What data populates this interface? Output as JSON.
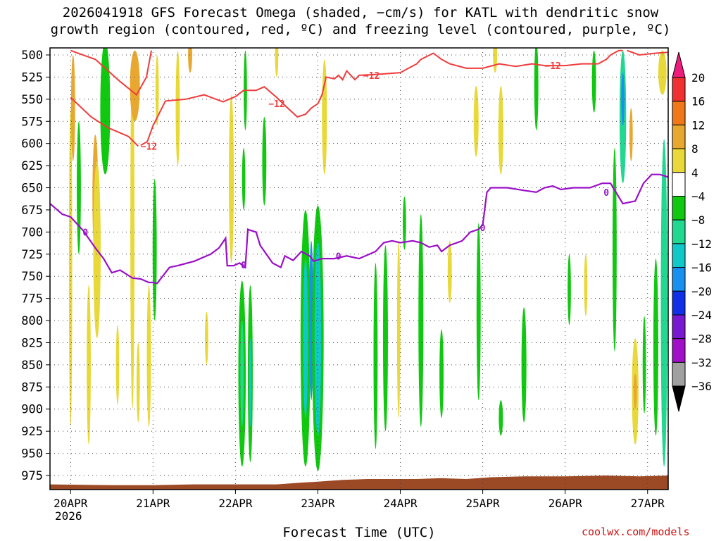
{
  "title_line1": "2026041918 GFS Forecast Omega (shaded, −cm/s) for KATL with dendritic snow",
  "title_line2": "growth region (contoured, red, ºC) and freezing level (contoured, purple, ºC)",
  "xlabel": "Forecast Time (UTC)",
  "credit": "coolwx.com/models",
  "chart_data": {
    "type": "heatmap",
    "title": "2026041918 GFS Forecast Omega (shaded, −cm/s) for KATL with dendritic snow growth region (contoured, red, ºC) and freezing level (contoured, purple, ºC)",
    "xlabel": "Forecast Time (UTC)",
    "ylabel": "",
    "y_inverted": true,
    "y_unit": "hPa",
    "ylim": [
      987,
      495
    ],
    "xlim": [
      -0.25,
      7.25
    ],
    "x_ticks": [
      {
        "x": 0,
        "label": "20APR",
        "sub": "2026"
      },
      {
        "x": 1,
        "label": "21APR"
      },
      {
        "x": 2,
        "label": "22APR"
      },
      {
        "x": 3,
        "label": "23APR"
      },
      {
        "x": 4,
        "label": "24APR"
      },
      {
        "x": 5,
        "label": "25APR"
      },
      {
        "x": 6,
        "label": "26APR"
      },
      {
        "x": 7,
        "label": "27APR"
      }
    ],
    "y_ticks": [
      500,
      525,
      550,
      575,
      600,
      625,
      650,
      675,
      700,
      725,
      750,
      775,
      800,
      825,
      850,
      875,
      900,
      925,
      950,
      975
    ],
    "grid": true,
    "colorbar": {
      "labels": [
        "20",
        "16",
        "12",
        "8",
        "4",
        "−4",
        "−8",
        "−12",
        "−16",
        "−20",
        "−24",
        "−28",
        "−32",
        "−36"
      ],
      "colors": [
        "#ee1c7a",
        "#f03030",
        "#f07818",
        "#e8a830",
        "#e8d838",
        "#ffffff",
        "#10c810",
        "#20d890",
        "#10c8c8",
        "#1890f0",
        "#1030e8",
        "#7818d0",
        "#a010c8",
        "#a0a0a0",
        "#000000"
      ]
    },
    "dgz_contour": {
      "label": "−12",
      "color": "#f03c3c",
      "series": [
        {
          "x": [
            0.0,
            0.3,
            0.6,
            0.8,
            0.92,
            0.98
          ],
          "y": [
            495,
            505,
            530,
            545,
            525,
            495
          ]
        },
        {
          "x": [
            0.0,
            0.25,
            0.45,
            0.7,
            0.82
          ],
          "y": [
            548,
            570,
            582,
            592,
            603
          ]
        },
        {
          "x": [
            0.85,
            0.93,
            1.0,
            1.15,
            1.4,
            1.62,
            1.85,
            2.0,
            2.1,
            2.25,
            2.35,
            2.5,
            2.6,
            2.75,
            2.85,
            2.92,
            3.0,
            3.05,
            3.1,
            3.2,
            3.25,
            3.3,
            3.35,
            3.4,
            3.45,
            3.5,
            3.7,
            4.0,
            4.2,
            4.25,
            4.4,
            4.5,
            4.6,
            4.8,
            5.0,
            5.2,
            5.4,
            5.6,
            5.75,
            6.0,
            6.2,
            6.4,
            6.5,
            6.55,
            6.65,
            6.7
          ],
          "y": [
            602,
            598,
            580,
            552,
            550,
            545,
            553,
            547,
            540,
            540,
            536,
            548,
            557,
            570,
            567,
            560,
            555,
            545,
            525,
            527,
            523,
            528,
            518,
            523,
            528,
            523,
            522,
            520,
            510,
            505,
            498,
            505,
            510,
            515,
            515,
            510,
            513,
            510,
            512,
            512,
            510,
            510,
            505,
            500,
            495,
            495
          ]
        },
        {
          "x": [
            6.75,
            6.9,
            7.1,
            7.25
          ],
          "y": [
            495,
            500,
            498,
            497
          ]
        }
      ]
    },
    "freezing_level": {
      "label": "0",
      "color": "#9a10c8",
      "x": [
        -0.25,
        -0.1,
        0.0,
        0.15,
        0.3,
        0.4,
        0.5,
        0.6,
        0.75,
        0.85,
        0.95,
        1.0,
        1.05,
        1.1,
        1.2,
        1.3,
        1.5,
        1.7,
        1.8,
        1.88,
        1.9,
        1.98,
        2.0,
        2.05,
        2.12,
        2.15,
        2.18,
        2.25,
        2.3,
        2.45,
        2.55,
        2.6,
        2.7,
        2.8,
        2.9,
        2.95,
        3.05,
        3.2,
        3.35,
        3.5,
        3.7,
        3.8,
        3.9,
        4.0,
        4.15,
        4.25,
        4.35,
        4.45,
        4.5,
        4.6,
        4.75,
        4.85,
        4.95,
        5.0,
        5.05,
        5.1,
        5.3,
        5.5,
        5.65,
        5.75,
        5.85,
        5.95,
        6.1,
        6.3,
        6.45,
        6.55,
        6.7,
        6.85,
        6.95,
        7.05,
        7.15,
        7.25
      ],
      "y": [
        668,
        680,
        683,
        698,
        718,
        730,
        746,
        743,
        752,
        753,
        757,
        757,
        758,
        752,
        740,
        738,
        733,
        725,
        718,
        707,
        738,
        738,
        737,
        735,
        740,
        697,
        698,
        700,
        715,
        735,
        740,
        727,
        732,
        722,
        727,
        733,
        730,
        730,
        727,
        730,
        722,
        712,
        710,
        712,
        710,
        712,
        717,
        715,
        722,
        715,
        710,
        700,
        697,
        692,
        655,
        650,
        650,
        653,
        655,
        650,
        648,
        652,
        650,
        650,
        645,
        645,
        668,
        665,
        645,
        635,
        635,
        638
      ]
    },
    "omega_cells": [
      {
        "x": 0.0,
        "p": 740,
        "w": 0.04,
        "h": 360,
        "v": 5
      },
      {
        "x": 0.03,
        "p": 560,
        "w": 0.05,
        "h": 120,
        "v": 10
      },
      {
        "x": 0.1,
        "p": 650,
        "w": 0.05,
        "h": 150,
        "v": -6
      },
      {
        "x": 0.22,
        "p": 850,
        "w": 0.05,
        "h": 180,
        "v": 5
      },
      {
        "x": 0.3,
        "p": 660,
        "w": 0.07,
        "h": 140,
        "v": 10
      },
      {
        "x": 0.32,
        "p": 720,
        "w": 0.09,
        "h": 200,
        "v": 6
      },
      {
        "x": 0.42,
        "p": 560,
        "w": 0.12,
        "h": 150,
        "v": -7
      },
      {
        "x": 0.57,
        "p": 850,
        "w": 0.04,
        "h": 90,
        "v": 5
      },
      {
        "x": 0.75,
        "p": 700,
        "w": 0.05,
        "h": 400,
        "v": 5
      },
      {
        "x": 0.78,
        "p": 535,
        "w": 0.12,
        "h": 80,
        "v": 10
      },
      {
        "x": 0.82,
        "p": 870,
        "w": 0.04,
        "h": 90,
        "v": 5
      },
      {
        "x": 0.95,
        "p": 840,
        "w": 0.05,
        "h": 160,
        "v": 5
      },
      {
        "x": 1.02,
        "p": 720,
        "w": 0.05,
        "h": 160,
        "v": -6
      },
      {
        "x": 1.05,
        "p": 540,
        "w": 0.04,
        "h": 80,
        "v": 5
      },
      {
        "x": 1.3,
        "p": 560,
        "w": 0.05,
        "h": 130,
        "v": 5
      },
      {
        "x": 1.45,
        "p": 500,
        "w": 0.05,
        "h": 40,
        "v": 8
      },
      {
        "x": 1.65,
        "p": 820,
        "w": 0.04,
        "h": 60,
        "v": 5
      },
      {
        "x": 1.95,
        "p": 640,
        "w": 0.06,
        "h": 190,
        "v": 5
      },
      {
        "x": 2.08,
        "p": 860,
        "w": 0.09,
        "h": 210,
        "v": -7
      },
      {
        "x": 2.08,
        "p": 860,
        "w": 0.04,
        "h": 120,
        "v": -11
      },
      {
        "x": 2.1,
        "p": 640,
        "w": 0.04,
        "h": 70,
        "v": -6
      },
      {
        "x": 2.12,
        "p": 540,
        "w": 0.04,
        "h": 90,
        "v": -6
      },
      {
        "x": 2.18,
        "p": 860,
        "w": 0.06,
        "h": 200,
        "v": -7
      },
      {
        "x": 2.18,
        "p": 870,
        "w": 0.03,
        "h": 100,
        "v": -15
      },
      {
        "x": 2.35,
        "p": 620,
        "w": 0.05,
        "h": 100,
        "v": -6
      },
      {
        "x": 2.5,
        "p": 500,
        "w": 0.04,
        "h": 50,
        "v": 5
      },
      {
        "x": 2.85,
        "p": 820,
        "w": 0.12,
        "h": 290,
        "v": -7
      },
      {
        "x": 2.85,
        "p": 820,
        "w": 0.06,
        "h": 180,
        "v": -12
      },
      {
        "x": 2.92,
        "p": 800,
        "w": 0.05,
        "h": 180,
        "v": -16
      },
      {
        "x": 3.0,
        "p": 820,
        "w": 0.14,
        "h": 300,
        "v": -7
      },
      {
        "x": 3.0,
        "p": 820,
        "w": 0.08,
        "h": 220,
        "v": -12
      },
      {
        "x": 3.08,
        "p": 570,
        "w": 0.06,
        "h": 130,
        "v": 5
      },
      {
        "x": 3.7,
        "p": 840,
        "w": 0.05,
        "h": 210,
        "v": -7
      },
      {
        "x": 3.82,
        "p": 820,
        "w": 0.06,
        "h": 210,
        "v": -7
      },
      {
        "x": 3.98,
        "p": 810,
        "w": 0.04,
        "h": 200,
        "v": 5
      },
      {
        "x": 4.05,
        "p": 690,
        "w": 0.04,
        "h": 60,
        "v": -6
      },
      {
        "x": 4.25,
        "p": 800,
        "w": 0.06,
        "h": 240,
        "v": -7
      },
      {
        "x": 4.5,
        "p": 860,
        "w": 0.05,
        "h": 100,
        "v": -6
      },
      {
        "x": 4.6,
        "p": 745,
        "w": 0.05,
        "h": 70,
        "v": 5
      },
      {
        "x": 4.95,
        "p": 790,
        "w": 0.05,
        "h": 200,
        "v": -7
      },
      {
        "x": 4.92,
        "p": 575,
        "w": 0.06,
        "h": 80,
        "v": 5
      },
      {
        "x": 5.15,
        "p": 500,
        "w": 0.05,
        "h": 40,
        "v": 5
      },
      {
        "x": 5.22,
        "p": 585,
        "w": 0.06,
        "h": 100,
        "v": 5
      },
      {
        "x": 5.22,
        "p": 910,
        "w": 0.05,
        "h": 40,
        "v": -6
      },
      {
        "x": 5.5,
        "p": 850,
        "w": 0.06,
        "h": 130,
        "v": -7
      },
      {
        "x": 5.65,
        "p": 535,
        "w": 0.05,
        "h": 100,
        "v": -6
      },
      {
        "x": 6.05,
        "p": 765,
        "w": 0.04,
        "h": 80,
        "v": -6
      },
      {
        "x": 6.25,
        "p": 760,
        "w": 0.04,
        "h": 70,
        "v": 5
      },
      {
        "x": 6.35,
        "p": 530,
        "w": 0.05,
        "h": 70,
        "v": -6
      },
      {
        "x": 6.6,
        "p": 720,
        "w": 0.05,
        "h": 230,
        "v": -7
      },
      {
        "x": 6.7,
        "p": 570,
        "w": 0.08,
        "h": 150,
        "v": -9
      },
      {
        "x": 6.7,
        "p": 550,
        "w": 0.04,
        "h": 60,
        "v": -16
      },
      {
        "x": 6.8,
        "p": 590,
        "w": 0.04,
        "h": 60,
        "v": 10
      },
      {
        "x": 6.85,
        "p": 880,
        "w": 0.08,
        "h": 120,
        "v": 5
      },
      {
        "x": 6.85,
        "p": 880,
        "w": 0.04,
        "h": 40,
        "v": 10
      },
      {
        "x": 6.96,
        "p": 850,
        "w": 0.04,
        "h": 110,
        "v": -6
      },
      {
        "x": 7.1,
        "p": 830,
        "w": 0.06,
        "h": 200,
        "v": -7
      },
      {
        "x": 7.2,
        "p": 780,
        "w": 0.08,
        "h": 370,
        "v": -9
      },
      {
        "x": 7.18,
        "p": 520,
        "w": 0.1,
        "h": 50,
        "v": 5
      }
    ],
    "ground_surface": {
      "color": "#9c4a26",
      "x": [
        -0.25,
        0.5,
        1.0,
        1.5,
        2.0,
        2.5,
        2.8,
        3.0,
        3.3,
        3.6,
        3.9,
        4.2,
        4.5,
        4.8,
        5.1,
        5.5,
        6.0,
        6.5,
        6.9,
        7.25
      ],
      "p": [
        985,
        986,
        986,
        985,
        985,
        985,
        983,
        982,
        980,
        979,
        979,
        979,
        978,
        979,
        977,
        976,
        976,
        975,
        976,
        975
      ]
    }
  }
}
